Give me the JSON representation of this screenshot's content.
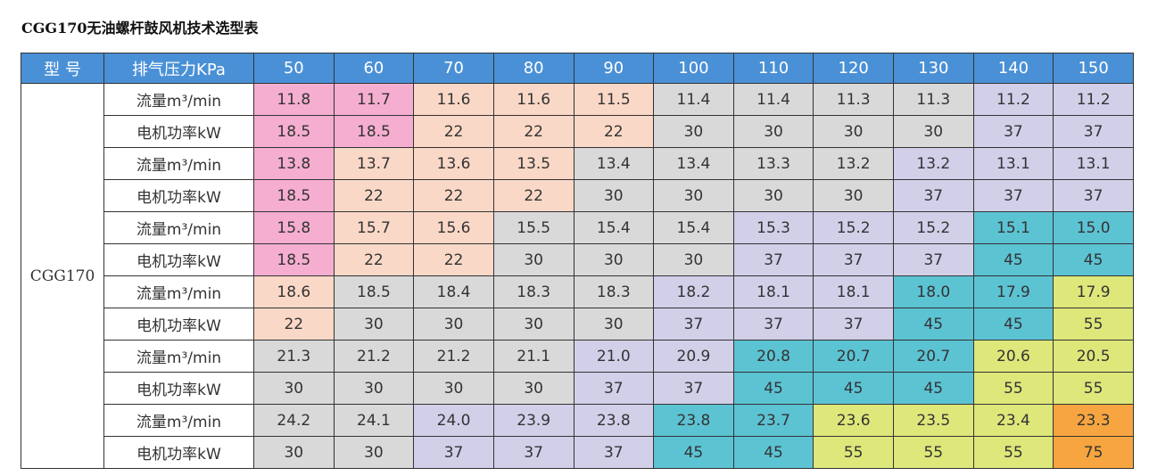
{
  "title": "CGG170无油螺杆鼓风机技术选型表",
  "header": {
    "model_label": "型 号",
    "pressure_label": "排气压力KPa",
    "pressures": [
      "50",
      "60",
      "70",
      "80",
      "90",
      "100",
      "110",
      "120",
      "130",
      "140",
      "150"
    ]
  },
  "model": "CGG170",
  "row_labels": {
    "flow": "流量m³/min",
    "power": "电机功率kW"
  },
  "colors": {
    "P": "#f5aed0",
    "E": "#fad8c7",
    "G": "#d9d9da",
    "L": "#d2cfe9",
    "T": "#5cc3d3",
    "Y": "#dde77a",
    "O": "#f6a540"
  },
  "rows": [
    {
      "type": "flow",
      "values": [
        "11.8",
        "11.7",
        "11.6",
        "11.6",
        "11.5",
        "11.4",
        "11.4",
        "11.3",
        "11.3",
        "11.2",
        "11.2"
      ],
      "colors": "PPEEEGGGGLL"
    },
    {
      "type": "power",
      "values": [
        "18.5",
        "18.5",
        "22",
        "22",
        "22",
        "30",
        "30",
        "30",
        "30",
        "37",
        "37"
      ],
      "colors": "PPEEEGGGGLL"
    },
    {
      "type": "flow",
      "values": [
        "13.8",
        "13.7",
        "13.6",
        "13.5",
        "13.4",
        "13.4",
        "13.3",
        "13.2",
        "13.2",
        "13.1",
        "13.1"
      ],
      "colors": "PEEEGGGGLLL"
    },
    {
      "type": "power",
      "values": [
        "18.5",
        "22",
        "22",
        "22",
        "30",
        "30",
        "30",
        "30",
        "37",
        "37",
        "37"
      ],
      "colors": "PEEEGGGGLLL"
    },
    {
      "type": "flow",
      "values": [
        "15.8",
        "15.7",
        "15.6",
        "15.5",
        "15.4",
        "15.4",
        "15.3",
        "15.2",
        "15.2",
        "15.1",
        "15.0"
      ],
      "colors": "PEEGGGLLLTT"
    },
    {
      "type": "power",
      "values": [
        "18.5",
        "22",
        "22",
        "30",
        "30",
        "30",
        "37",
        "37",
        "37",
        "45",
        "45"
      ],
      "colors": "PEEGGGLLLTT"
    },
    {
      "type": "flow",
      "values": [
        "18.6",
        "18.5",
        "18.4",
        "18.3",
        "18.3",
        "18.2",
        "18.1",
        "18.1",
        "18.0",
        "17.9",
        "17.9"
      ],
      "colors": "EGGGGLLLTTY"
    },
    {
      "type": "power",
      "values": [
        "22",
        "30",
        "30",
        "30",
        "30",
        "37",
        "37",
        "37",
        "45",
        "45",
        "55"
      ],
      "colors": "EGGGGLLLTTY"
    },
    {
      "type": "flow",
      "values": [
        "21.3",
        "21.2",
        "21.2",
        "21.1",
        "21.0",
        "20.9",
        "20.8",
        "20.7",
        "20.7",
        "20.6",
        "20.5"
      ],
      "colors": "GGGGLLTTTYY"
    },
    {
      "type": "power",
      "values": [
        "30",
        "30",
        "30",
        "30",
        "37",
        "37",
        "45",
        "45",
        "45",
        "55",
        "55"
      ],
      "colors": "GGGGLLTTTYY"
    },
    {
      "type": "flow",
      "values": [
        "24.2",
        "24.1",
        "24.0",
        "23.9",
        "23.8",
        "23.8",
        "23.7",
        "23.6",
        "23.5",
        "23.4",
        "23.3"
      ],
      "colors": "GGLLLTTYYYO"
    },
    {
      "type": "power",
      "values": [
        "30",
        "30",
        "37",
        "37",
        "37",
        "45",
        "45",
        "55",
        "55",
        "55",
        "75"
      ],
      "colors": "GGLLLTTYYYO"
    }
  ]
}
